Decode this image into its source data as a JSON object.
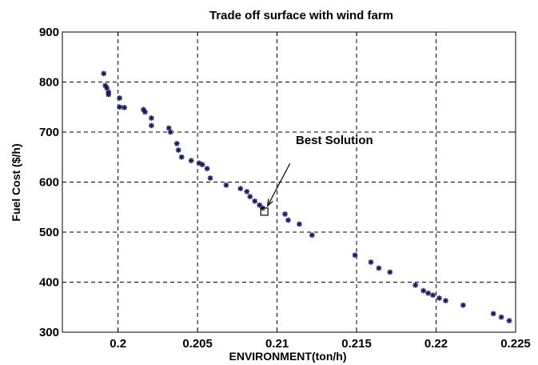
{
  "chart_data": {
    "type": "scatter",
    "title": "Trade off surface with wind farm",
    "xlabel": "ENVIRONMENT(ton/h)",
    "ylabel": "Fuel Cost ($/h)",
    "xlim": [
      0.1965,
      0.225
    ],
    "ylim": [
      300,
      900
    ],
    "xticks": [
      0.2,
      0.205,
      0.21,
      0.215,
      0.22,
      0.225
    ],
    "xtick_labels": [
      "0.2",
      "0.205",
      "0.21",
      "0.215",
      "0.22",
      "0.225"
    ],
    "yticks": [
      300,
      400,
      500,
      600,
      700,
      800,
      900
    ],
    "ytick_labels": [
      "300",
      "400",
      "500",
      "600",
      "700",
      "800",
      "900"
    ],
    "grid": true,
    "marker": "asterisk",
    "marker_color": "#1a1a5e",
    "points": [
      [
        0.1991,
        817
      ],
      [
        0.1992,
        793
      ],
      [
        0.1993,
        788
      ],
      [
        0.1994,
        780
      ],
      [
        0.1994,
        775
      ],
      [
        0.2001,
        768
      ],
      [
        0.2001,
        750
      ],
      [
        0.2004,
        749
      ],
      [
        0.2016,
        745
      ],
      [
        0.2017,
        740
      ],
      [
        0.2021,
        728
      ],
      [
        0.2021,
        713
      ],
      [
        0.2032,
        708
      ],
      [
        0.2033,
        700
      ],
      [
        0.2037,
        677
      ],
      [
        0.2038,
        664
      ],
      [
        0.204,
        650
      ],
      [
        0.2046,
        643
      ],
      [
        0.2051,
        638
      ],
      [
        0.2053,
        635
      ],
      [
        0.2056,
        627
      ],
      [
        0.2058,
        608
      ],
      [
        0.2068,
        594
      ],
      [
        0.2077,
        587
      ],
      [
        0.2081,
        581
      ],
      [
        0.2083,
        571
      ],
      [
        0.2086,
        562
      ],
      [
        0.2089,
        554
      ],
      [
        0.2091,
        548
      ],
      [
        0.2105,
        536
      ],
      [
        0.2107,
        524
      ],
      [
        0.2114,
        516
      ],
      [
        0.2122,
        494
      ],
      [
        0.2149,
        454
      ],
      [
        0.2159,
        440
      ],
      [
        0.2164,
        428
      ],
      [
        0.2171,
        420
      ],
      [
        0.2187,
        394
      ],
      [
        0.2192,
        383
      ],
      [
        0.2195,
        378
      ],
      [
        0.2198,
        374
      ],
      [
        0.2202,
        368
      ],
      [
        0.2206,
        363
      ],
      [
        0.2217,
        354
      ],
      [
        0.2236,
        337
      ],
      [
        0.2241,
        330
      ],
      [
        0.2246,
        323
      ]
    ],
    "best_solution": {
      "label": "Best Solution",
      "point": [
        0.2092,
        541
      ]
    }
  }
}
